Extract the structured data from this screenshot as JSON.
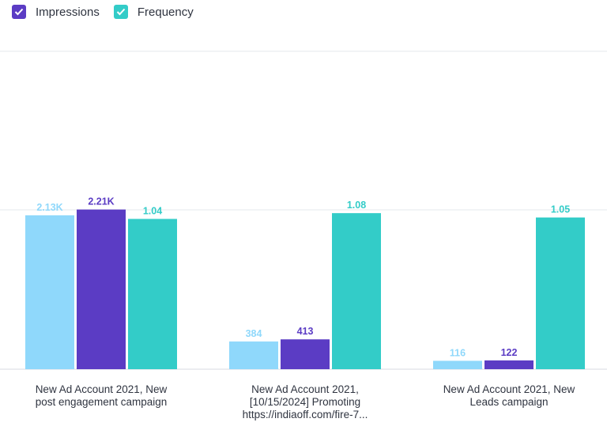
{
  "legend": [
    {
      "label": "Impressions",
      "color": "#5b3cc4",
      "checked": true,
      "icon": "checkbox-checked-icon"
    },
    {
      "label": "Frequency",
      "color": "#33ccc8",
      "checked": true,
      "icon": "checkbox-checked-icon"
    }
  ],
  "chart_data": {
    "type": "bar",
    "categories": [
      [
        "New Ad Account 2021, New",
        "post engagement campaign"
      ],
      [
        "New Ad Account 2021,",
        "[10/15/2024] Promoting",
        "https://indiaoff.com/fire-7..."
      ],
      [
        "New Ad Account 2021, New",
        "Leads campaign"
      ]
    ],
    "series": [
      {
        "values": [
          2130,
          384,
          116
        ],
        "labels": [
          "2.13K",
          "384",
          "116"
        ],
        "color": "#8fd8fb"
      },
      {
        "name": "Impressions",
        "values": [
          2210,
          413,
          122
        ],
        "labels": [
          "2.21K",
          "413",
          "122"
        ],
        "color": "#5b3cc4"
      },
      {
        "name": "Frequency",
        "values": [
          1.04,
          1.08,
          1.05
        ],
        "labels": [
          "1.04",
          "1.08",
          "1.05"
        ],
        "color": "#33ccc8"
      }
    ],
    "grid": true,
    "legend_position": "top-left"
  }
}
